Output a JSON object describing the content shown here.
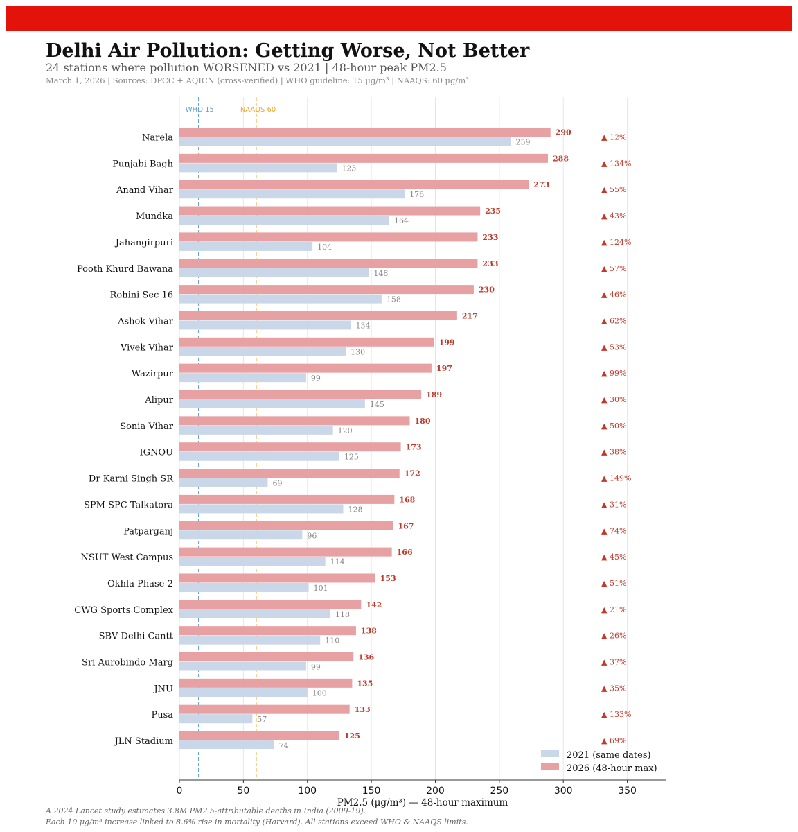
{
  "header": {
    "title": "Delhi Air Pollution: Getting Worse, Not Better",
    "subtitle": "24 stations where pollution WORSENED vs 2021 | 48-hour peak PM2.5",
    "meta": "March 1, 2026 | Sources: DPCC + AQICN (cross-verified) | WHO guideline: 15 μg/m³ | NAAQS: 60 μg/m³"
  },
  "colors": {
    "brand_band": "#e3120b",
    "bar_2026": "#e8a1a3",
    "bar_2021": "#c9d7e8",
    "label_2026": "#c0392b",
    "label_2021": "#888888",
    "who_line": "#5aa0d8",
    "naaqs_line": "#f5a623"
  },
  "footnotes": [
    "A 2024 Lancet study estimates 3.8M PM2.5-attributable deaths in India (2009-19).",
    "Each 10 μg/m³ increase linked to 8.6% rise in mortality (Harvard). All stations exceed WHO & NAAQS limits."
  ],
  "chart_data": {
    "type": "bar",
    "orientation": "horizontal",
    "xlabel": "PM2.5 (μg/m³) — 48-hour maximum",
    "xlim": [
      0,
      380
    ],
    "xticks": [
      0,
      50,
      100,
      150,
      200,
      250,
      300,
      350
    ],
    "grid": "vertical",
    "legend_position": "bottom-right",
    "reference_lines": [
      {
        "label": "WHO 15",
        "value": 15,
        "color": "#5aa0d8"
      },
      {
        "label": "NAAQS 60",
        "value": 60,
        "color": "#f5a623"
      }
    ],
    "categories": [
      "Narela",
      "Punjabi Bagh",
      "Anand Vihar",
      "Mundka",
      "Jahangirpuri",
      "Pooth Khurd Bawana",
      "Rohini Sec 16",
      "Ashok Vihar",
      "Vivek Vihar",
      "Wazirpur",
      "Alipur",
      "Sonia Vihar",
      "IGNOU",
      "Dr Karni Singh SR",
      "SPM SPC Talkatora",
      "Patparganj",
      "NSUT West Campus",
      "Okhla Phase-2",
      "CWG Sports Complex",
      "SBV Delhi Cantt",
      "Sri Aurobindo Marg",
      "JNU",
      "Pusa",
      "JLN Stadium"
    ],
    "series": [
      {
        "name": "2021 (same dates)",
        "values": [
          259,
          123,
          176,
          164,
          104,
          148,
          158,
          134,
          130,
          99,
          145,
          120,
          125,
          69,
          128,
          96,
          114,
          101,
          118,
          110,
          99,
          100,
          57,
          74
        ]
      },
      {
        "name": "2026 (48-hour max)",
        "values": [
          290,
          288,
          273,
          235,
          233,
          233,
          230,
          217,
          199,
          197,
          189,
          180,
          173,
          172,
          168,
          167,
          166,
          153,
          142,
          138,
          136,
          135,
          133,
          125
        ]
      }
    ],
    "change_labels": [
      "▲ 12%",
      "▲ 134%",
      "▲ 55%",
      "▲ 43%",
      "▲ 124%",
      "▲ 57%",
      "▲ 46%",
      "▲ 62%",
      "▲ 53%",
      "▲ 99%",
      "▲ 30%",
      "▲ 50%",
      "▲ 38%",
      "▲ 149%",
      "▲ 31%",
      "▲ 74%",
      "▲ 45%",
      "▲ 51%",
      "▲ 21%",
      "▲ 26%",
      "▲ 37%",
      "▲ 35%",
      "▲ 133%",
      "▲ 69%"
    ]
  }
}
